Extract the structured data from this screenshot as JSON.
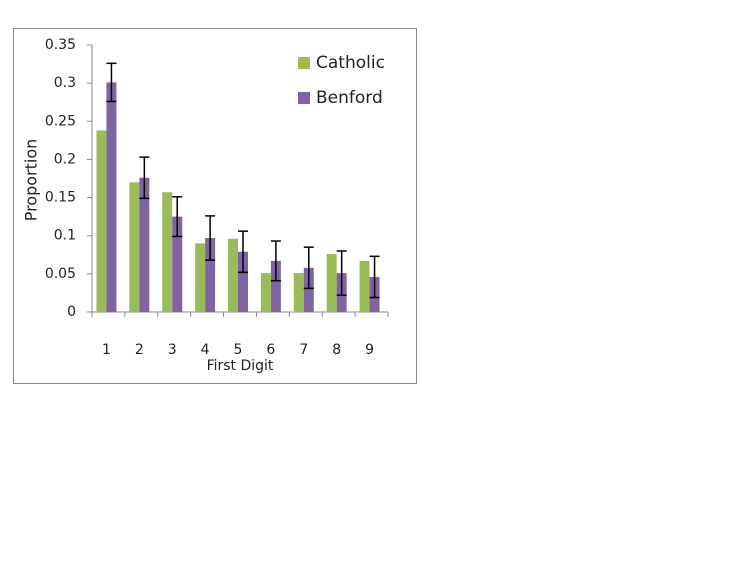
{
  "chart_data": {
    "type": "bar",
    "x_label": "First Digit",
    "y_label": "Proportion",
    "categories": [
      "1",
      "2",
      "3",
      "4",
      "5",
      "6",
      "7",
      "8",
      "9"
    ],
    "series": [
      {
        "name": "Catholic",
        "color": "#9bbb59",
        "values": [
          0.238,
          0.17,
          0.157,
          0.09,
          0.096,
          0.051,
          0.051,
          0.076,
          0.067
        ]
      },
      {
        "name": "Benford",
        "color": "#8064a2",
        "values": [
          0.301,
          0.176,
          0.125,
          0.097,
          0.079,
          0.067,
          0.058,
          0.051,
          0.046
        ],
        "errors": [
          0.025,
          0.027,
          0.026,
          0.029,
          0.027,
          0.026,
          0.027,
          0.029,
          0.027
        ]
      }
    ],
    "ylim": [
      0,
      0.35
    ],
    "yticks": [
      0,
      0.05,
      0.1,
      0.15,
      0.2,
      0.25,
      0.3,
      0.35
    ],
    "legend": "top-right"
  }
}
